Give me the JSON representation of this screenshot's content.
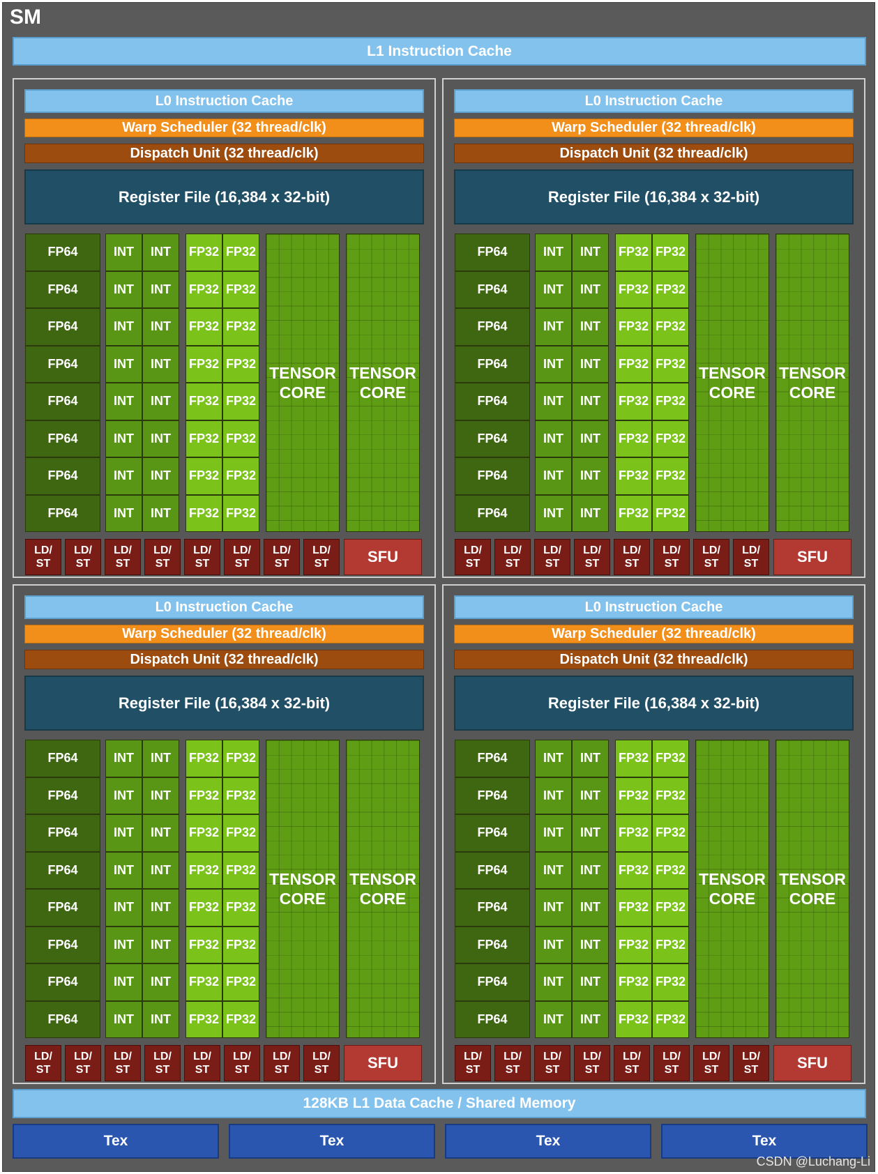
{
  "sm": {
    "title": "SM",
    "l1_instruction_cache": "L1 Instruction Cache",
    "l1_data_cache": "128KB L1 Data Cache / Shared Memory",
    "tex_units": [
      "Tex",
      "Tex",
      "Tex",
      "Tex"
    ]
  },
  "processing_block": {
    "l0_cache": "L0 Instruction Cache",
    "warp_scheduler": "Warp Scheduler (32 thread/clk)",
    "dispatch_unit": "Dispatch Unit (32 thread/clk)",
    "register_file": "Register File (16,384 x 32-bit)",
    "fp64_label": "FP64",
    "int_label": "INT",
    "fp32_label": "FP32",
    "tensor_label_line1": "TENSOR",
    "tensor_label_line2": "CORE",
    "ldst_line1": "LD/",
    "ldst_line2": "ST",
    "sfu_label": "SFU",
    "unit_rows": 8,
    "tensor_cores": 2,
    "ldst_units": 8
  },
  "watermark": "CSDN @Luchang-Li",
  "colors": {
    "background": "#5a5a5a",
    "cache": "#84c2ee",
    "warp_scheduler": "#f28e1a",
    "dispatch_unit": "#9c4c0f",
    "register_file": "#204f66",
    "fp64": "#3f6712",
    "int": "#5a9615",
    "fp32": "#7bc21a",
    "tensor": "#5f9e14",
    "ldst": "#7a1d17",
    "sfu": "#b23a33",
    "tex": "#2a56b0"
  }
}
